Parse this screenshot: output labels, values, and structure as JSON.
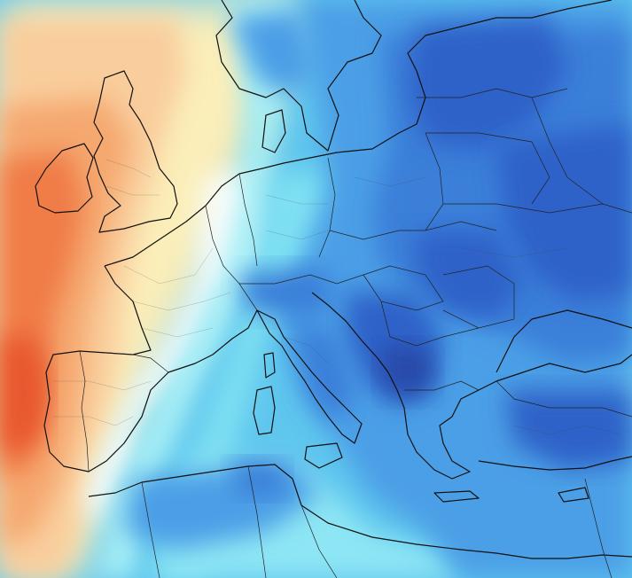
{
  "map": {
    "kind": "weather-anomaly-map",
    "region": "Europe",
    "colors": {
      "deep_orange": "#e8572e",
      "orange": "#f07b46",
      "light_orange": "#f5a870",
      "peach": "#f9cd9c",
      "pale_yellow": "#fbeeb9",
      "white": "#ffffff",
      "cyan_light": "#a8f0f6",
      "cyan": "#7fe0f2",
      "sky_blue": "#5fc6ee",
      "blue": "#4b9fe6",
      "mid_blue": "#3b7fd9",
      "deep_blue": "#2f62c8",
      "navy": "#2648a8"
    },
    "line_colors": {
      "coastline": "#111111",
      "country_border": "#222222",
      "subregion_border": "#444444"
    }
  }
}
